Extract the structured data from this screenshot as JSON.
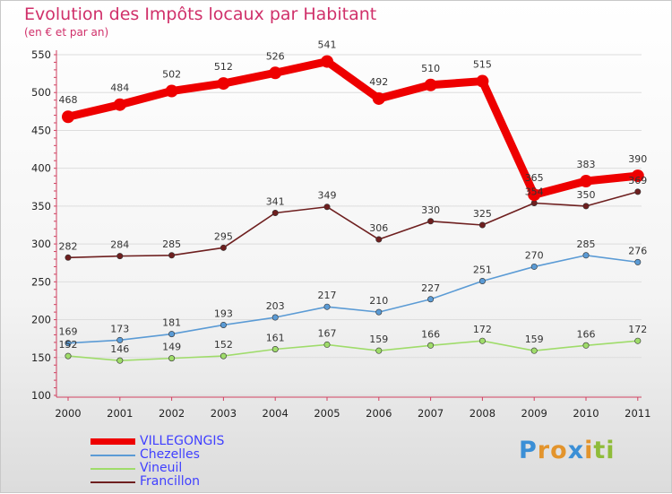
{
  "colors": {
    "title": "#d0306a",
    "series": [
      "#ee0000",
      "#5b9bd5",
      "#9fdc6a",
      "#6e1f1f"
    ],
    "legend_text": [
      "#4040ff",
      "#4040ff",
      "#4040ff",
      "#4040ff"
    ]
  },
  "logo": {
    "letters": [
      "P",
      "r",
      "o",
      "x",
      "i",
      "t",
      "i"
    ],
    "colors": [
      "#3b8fd6",
      "#e3942c",
      "#e3942c",
      "#3b8fd6",
      "#e3942c",
      "#8fbc3a",
      "#8fbc3a"
    ]
  },
  "chart_data": {
    "type": "line",
    "title": "Evolution des Impôts locaux par Habitant",
    "subtitle": "(en € et par an)",
    "x": [
      "2000",
      "2001",
      "2002",
      "2003",
      "2004",
      "2005",
      "2006",
      "2007",
      "2008",
      "2009",
      "2010",
      "2011"
    ],
    "ylim": [
      100,
      550
    ],
    "yticks": [
      100,
      150,
      200,
      250,
      300,
      350,
      400,
      450,
      500,
      550
    ],
    "legend_position": "bottom-left",
    "series": [
      {
        "name": "VILLEGONGIS",
        "values": [
          468,
          484,
          502,
          512,
          526,
          541,
          492,
          510,
          515,
          365,
          383,
          390
        ],
        "weight": "thick"
      },
      {
        "name": "Chezelles",
        "values": [
          169,
          173,
          181,
          193,
          203,
          217,
          210,
          227,
          251,
          270,
          285,
          276
        ],
        "weight": "thin"
      },
      {
        "name": "Vineuil",
        "values": [
          152,
          146,
          149,
          152,
          161,
          167,
          159,
          166,
          172,
          159,
          166,
          172
        ],
        "weight": "thin"
      },
      {
        "name": "Francillon",
        "values": [
          282,
          284,
          285,
          295,
          341,
          349,
          306,
          330,
          325,
          354,
          350,
          369
        ],
        "weight": "thin"
      }
    ]
  }
}
